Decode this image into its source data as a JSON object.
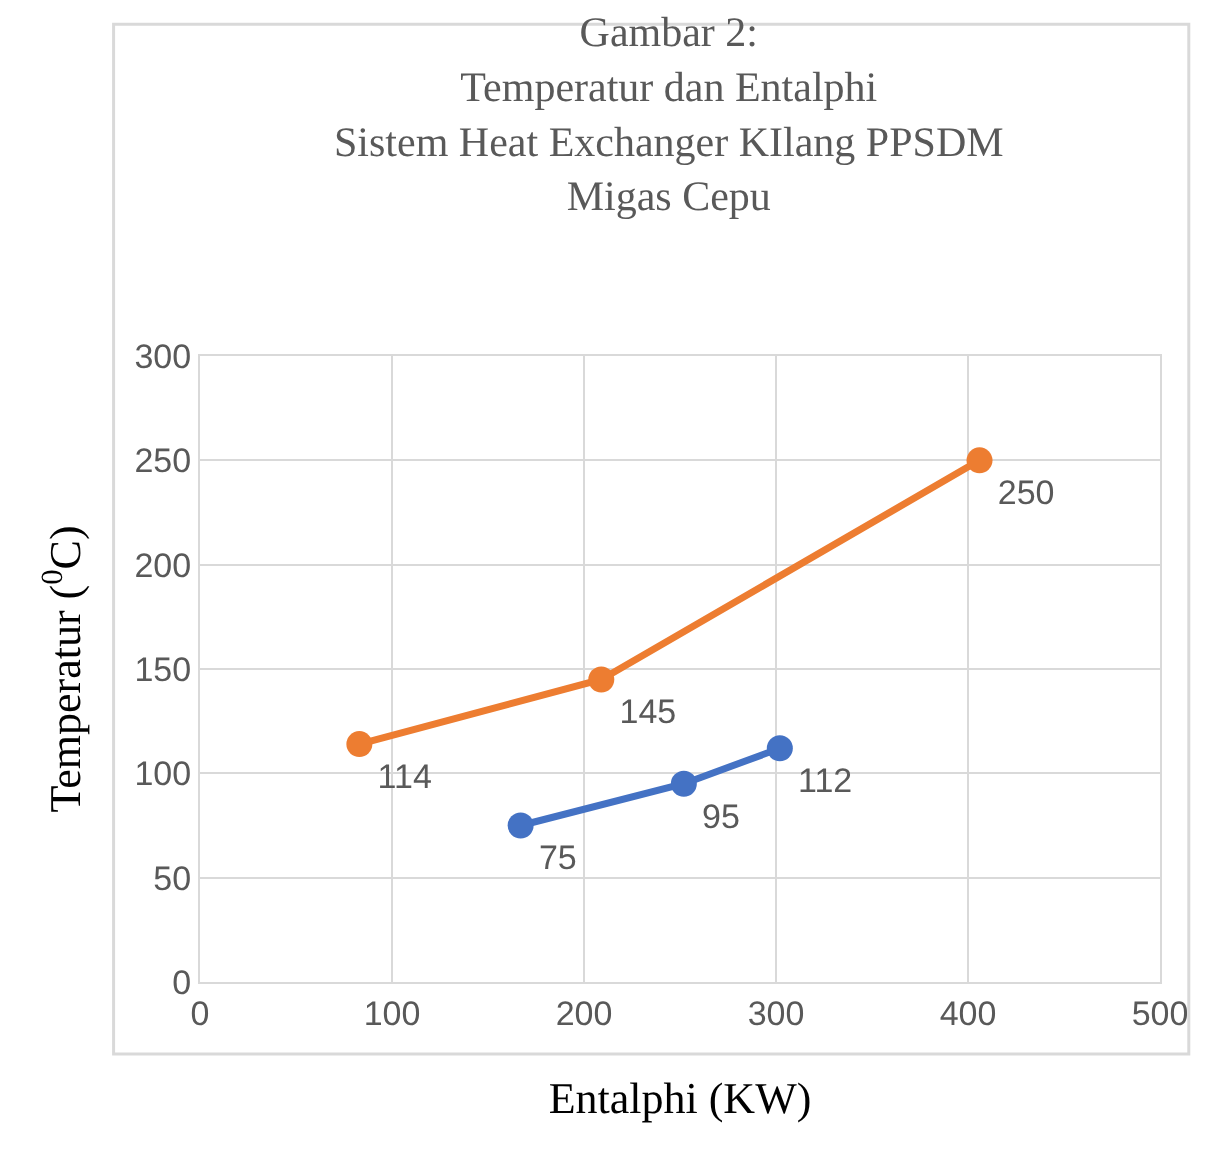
{
  "chart_data": {
    "type": "line",
    "title": "Gambar 2:\nTemperatur dan Entalphi\nSistem Heat Exchanger KIlang PPSDM\nMigas Cepu",
    "xlabel": "Entalphi (KW)",
    "ylabel": "Temperatur ($^{0}$C)",
    "series": [
      {
        "color": "#ed7d31",
        "x": [
          83,
          209,
          406
        ],
        "values": [
          114,
          145,
          250
        ]
      },
      {
        "color": "#4472c4",
        "x": [
          167,
          252,
          302
        ],
        "values": [
          75,
          95,
          112
        ]
      }
    ],
    "xlim": [
      0,
      500
    ],
    "xticks": [
      0,
      100,
      200,
      300,
      400,
      500
    ],
    "ylim": [
      0,
      300
    ],
    "yticks": [
      0,
      50,
      100,
      150,
      200,
      250,
      300
    ],
    "grid": true,
    "legend": false,
    "marker": "circle",
    "line_style": "solid",
    "data_labels": true
  }
}
